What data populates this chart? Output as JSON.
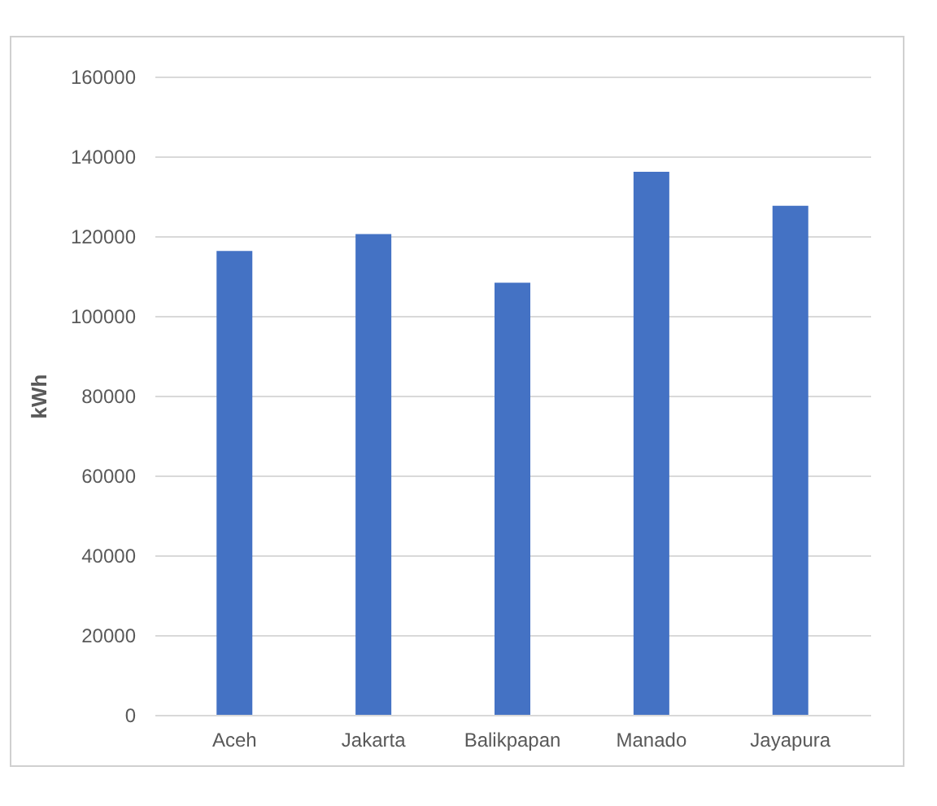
{
  "chart_data": {
    "type": "bar",
    "ylabel": "kWh",
    "categories": [
      "Aceh",
      "Jakarta",
      "Balikpapan",
      "Manado",
      "Jayapura"
    ],
    "values": [
      116300,
      120500,
      108300,
      136100,
      127600
    ],
    "color": "#4472c4",
    "ylim": [
      0,
      160000
    ],
    "yticks": [
      0,
      20000,
      40000,
      60000,
      80000,
      100000,
      120000,
      140000,
      160000
    ],
    "grid": "y"
  }
}
